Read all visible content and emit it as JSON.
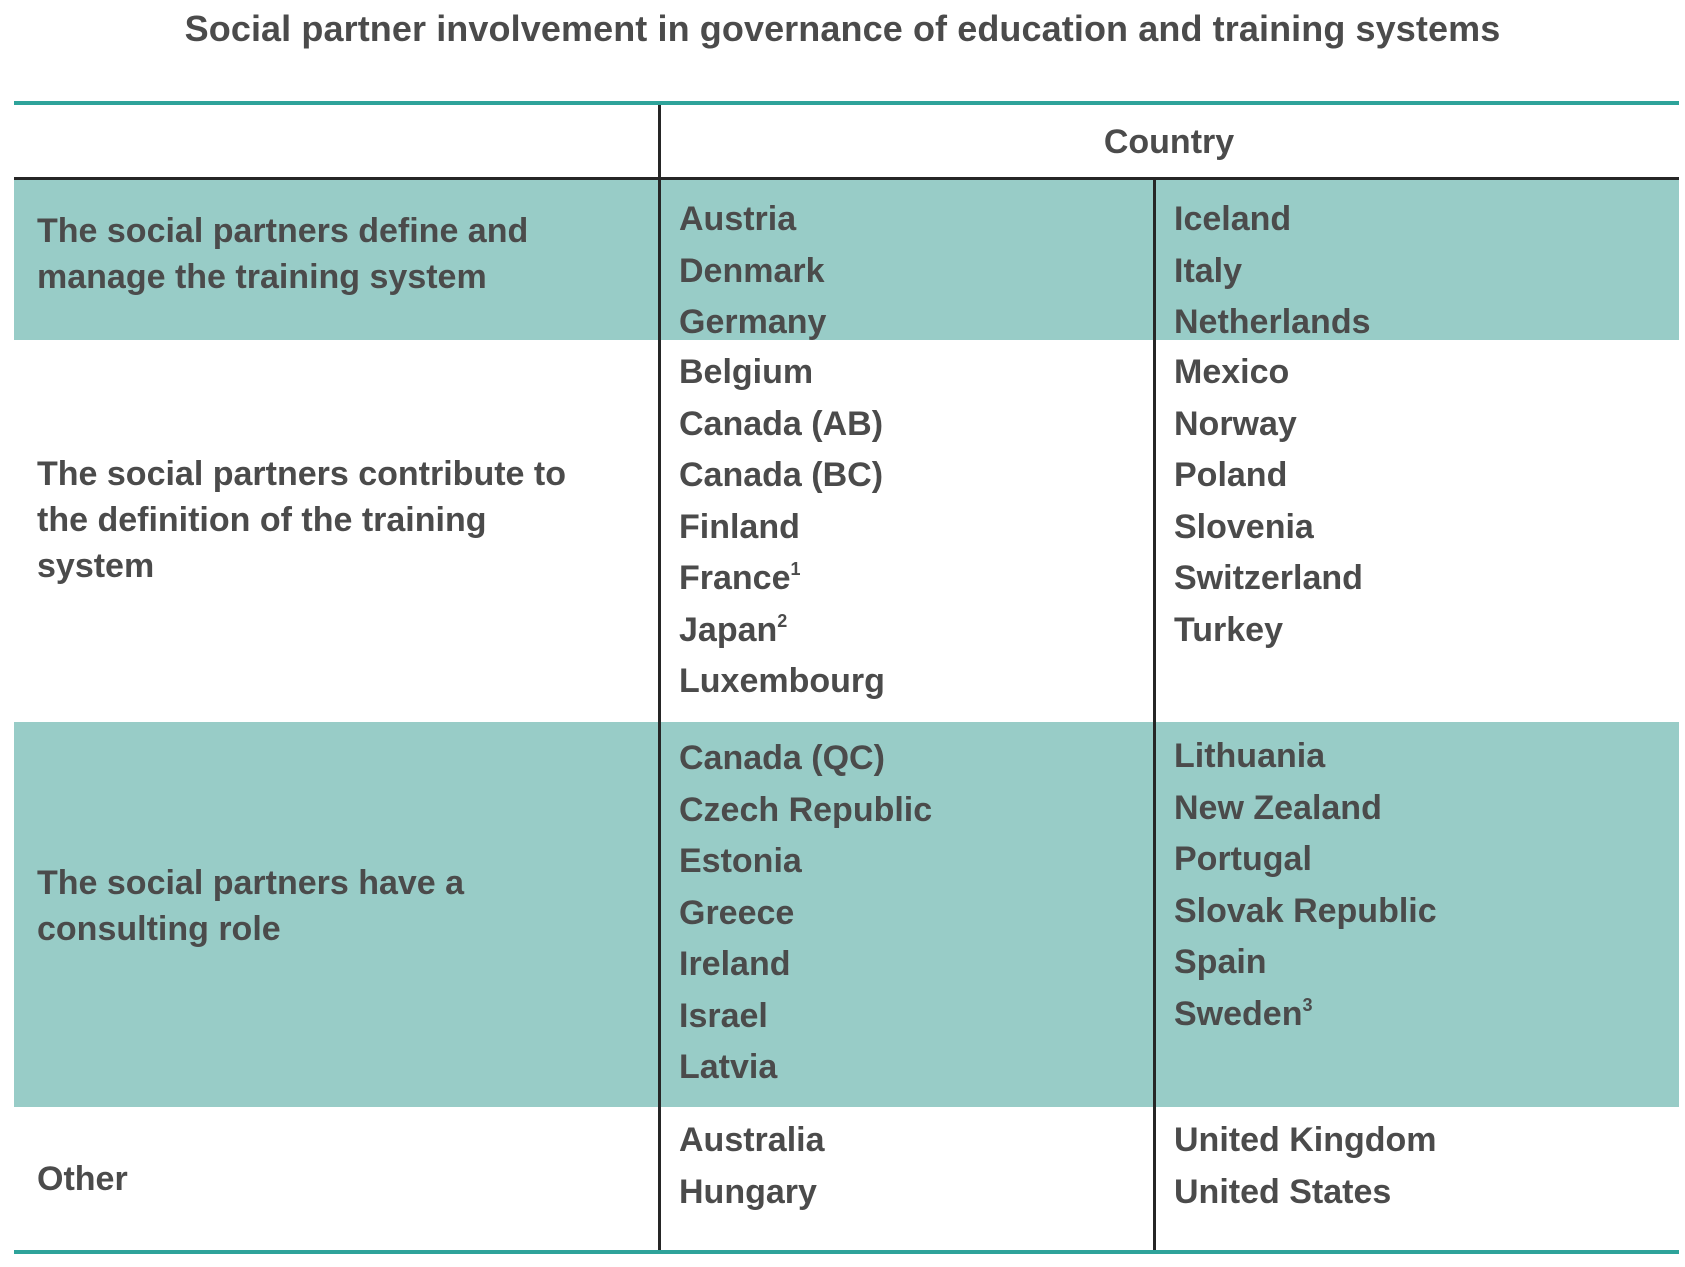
{
  "title": "Social partner involvement in governance of education and training systems",
  "table": {
    "header": {
      "column": "Country"
    },
    "rows": [
      {
        "label": "The social partners define and manage the training system",
        "left": [
          {
            "name": "Austria",
            "note": ""
          },
          {
            "name": "Denmark",
            "note": ""
          },
          {
            "name": "Germany",
            "note": ""
          }
        ],
        "right": [
          {
            "name": "Iceland",
            "note": ""
          },
          {
            "name": "Italy",
            "note": ""
          },
          {
            "name": "Netherlands",
            "note": ""
          }
        ]
      },
      {
        "label": "The social partners contribute to the definition of the training system",
        "left": [
          {
            "name": "Belgium",
            "note": ""
          },
          {
            "name": "Canada (AB)",
            "note": ""
          },
          {
            "name": "Canada (BC)",
            "note": ""
          },
          {
            "name": "Finland",
            "note": ""
          },
          {
            "name": "France",
            "note": "1"
          },
          {
            "name": "Japan",
            "note": "2"
          },
          {
            "name": "Luxembourg",
            "note": ""
          }
        ],
        "right": [
          {
            "name": "Mexico",
            "note": ""
          },
          {
            "name": "Norway",
            "note": ""
          },
          {
            "name": "Poland",
            "note": ""
          },
          {
            "name": "Slovenia",
            "note": ""
          },
          {
            "name": "Switzerland",
            "note": ""
          },
          {
            "name": "Turkey",
            "note": ""
          }
        ]
      },
      {
        "label": "The social partners have a consulting role",
        "left": [
          {
            "name": "Canada (QC)",
            "note": ""
          },
          {
            "name": "Czech Republic",
            "note": ""
          },
          {
            "name": "Estonia",
            "note": ""
          },
          {
            "name": "Greece",
            "note": ""
          },
          {
            "name": "Ireland",
            "note": ""
          },
          {
            "name": "Israel",
            "note": ""
          },
          {
            "name": "Latvia",
            "note": ""
          }
        ],
        "right": [
          {
            "name": "Lithuania",
            "note": ""
          },
          {
            "name": "New Zealand",
            "note": ""
          },
          {
            "name": "Portugal",
            "note": ""
          },
          {
            "name": "Slovak Republic",
            "note": ""
          },
          {
            "name": "Spain",
            "note": ""
          },
          {
            "name": "Sweden",
            "note": "3"
          }
        ]
      },
      {
        "label": "Other",
        "left": [
          {
            "name": "Australia",
            "note": ""
          },
          {
            "name": "Hungary",
            "note": ""
          }
        ],
        "right": [
          {
            "name": "United Kingdom",
            "note": ""
          },
          {
            "name": "United States",
            "note": ""
          }
        ]
      }
    ]
  },
  "colors": {
    "accent_rule": "#2ea39a",
    "shaded_row": "#98ccc7",
    "text": "#4b4b4b"
  }
}
